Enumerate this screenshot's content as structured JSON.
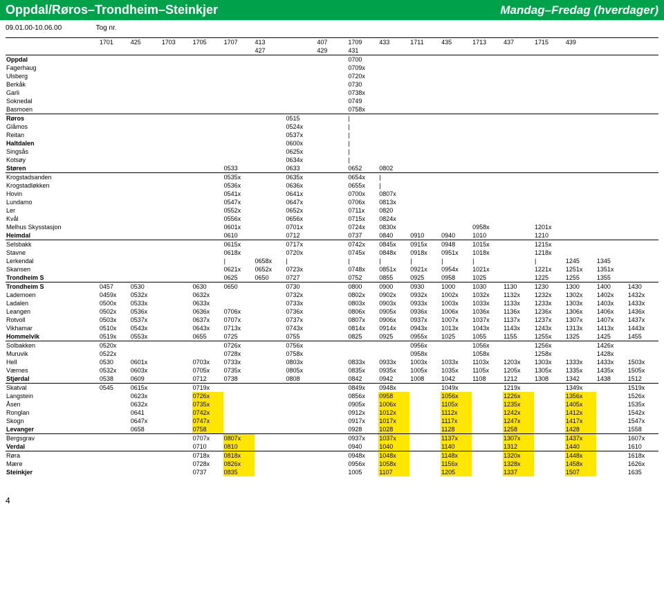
{
  "header": {
    "left": "Oppdal/Røros–Trondheim–Steinkjer",
    "right": "Mandag–Fredag (hverdager)"
  },
  "date_range": "09.01.00-10.06.00",
  "tog_label": "Tog nr.",
  "page_number": "4",
  "train_numbers_top": [
    "1701",
    "425",
    "1703",
    "1705",
    "1707",
    "413",
    "",
    "407",
    "1709",
    "433",
    "1711",
    "435",
    "1713",
    "437",
    "1715",
    "439"
  ],
  "train_numbers_bottom": [
    "",
    "",
    "",
    "",
    "",
    "427",
    "",
    "429",
    "431",
    "",
    "",
    "",
    "",
    "",
    "",
    "",
    "",
    ""
  ],
  "stations": [
    {
      "n": "Oppdal",
      "b": 1,
      "g": 1,
      "c": [
        "",
        "",
        "",
        "",
        "",
        "",
        "",
        "",
        "0700",
        "",
        "",
        "",
        "",
        "",
        "",
        "",
        "",
        ""
      ]
    },
    {
      "n": "Fagerhaug",
      "c": [
        "",
        "",
        "",
        "",
        "",
        "",
        "",
        "",
        "0709x",
        "",
        "",
        "",
        "",
        "",
        "",
        "",
        "",
        ""
      ]
    },
    {
      "n": "Ulsberg",
      "c": [
        "",
        "",
        "",
        "",
        "",
        "",
        "",
        "",
        "0720x",
        "",
        "",
        "",
        "",
        "",
        "",
        "",
        "",
        ""
      ]
    },
    {
      "n": "Berkåk",
      "c": [
        "",
        "",
        "",
        "",
        "",
        "",
        "",
        "",
        "0730",
        "",
        "",
        "",
        "",
        "",
        "",
        "",
        "",
        ""
      ]
    },
    {
      "n": "Garli",
      "c": [
        "",
        "",
        "",
        "",
        "",
        "",
        "",
        "",
        "0738x",
        "",
        "",
        "",
        "",
        "",
        "",
        "",
        "",
        ""
      ]
    },
    {
      "n": "Soknedal",
      "c": [
        "",
        "",
        "",
        "",
        "",
        "",
        "",
        "",
        "0749",
        "",
        "",
        "",
        "",
        "",
        "",
        "",
        "",
        ""
      ]
    },
    {
      "n": "Basmoen",
      "c": [
        "",
        "",
        "",
        "",
        "",
        "",
        "",
        "",
        "0758x",
        "",
        "",
        "",
        "",
        "",
        "",
        "",
        "",
        ""
      ]
    },
    {
      "n": "Røros",
      "b": 1,
      "g": 1,
      "c": [
        "",
        "",
        "",
        "",
        "",
        "",
        "0515",
        "",
        "|",
        "",
        "",
        "",
        "",
        "",
        "",
        "",
        "",
        ""
      ]
    },
    {
      "n": "Glåmos",
      "c": [
        "",
        "",
        "",
        "",
        "",
        "",
        "0524x",
        "",
        "|",
        "",
        "",
        "",
        "",
        "",
        "",
        "",
        "",
        ""
      ]
    },
    {
      "n": "Reitan",
      "c": [
        "",
        "",
        "",
        "",
        "",
        "",
        "0537x",
        "",
        "|",
        "",
        "",
        "",
        "",
        "",
        "",
        "",
        "",
        ""
      ]
    },
    {
      "n": "Haltdalen",
      "b": 1,
      "c": [
        "",
        "",
        "",
        "",
        "",
        "",
        "0600x",
        "",
        "|",
        "",
        "",
        "",
        "",
        "",
        "",
        "",
        "",
        ""
      ]
    },
    {
      "n": "Singsås",
      "c": [
        "",
        "",
        "",
        "",
        "",
        "",
        "0625x",
        "",
        "|",
        "",
        "",
        "",
        "",
        "",
        "",
        "",
        "",
        ""
      ]
    },
    {
      "n": "Kotsøy",
      "c": [
        "",
        "",
        "",
        "",
        "",
        "",
        "0634x",
        "",
        "|",
        "",
        "",
        "",
        "",
        "",
        "",
        "",
        "",
        ""
      ]
    },
    {
      "n": "Støren",
      "b": 1,
      "c": [
        "",
        "",
        "",
        "",
        "0533",
        "",
        "0633",
        "",
        "0652",
        "0802",
        "",
        "",
        "",
        "",
        "",
        "",
        "",
        ""
      ]
    },
    {
      "n": "Krogstadsanden",
      "g": 1,
      "c": [
        "",
        "",
        "",
        "",
        "0535x",
        "",
        "0635x",
        "",
        "0654x",
        "|",
        "",
        "",
        "",
        "",
        "",
        "",
        "",
        ""
      ]
    },
    {
      "n": "Krogstadløkken",
      "c": [
        "",
        "",
        "",
        "",
        "0536x",
        "",
        "0636x",
        "",
        "0655x",
        "|",
        "",
        "",
        "",
        "",
        "",
        "",
        "",
        ""
      ]
    },
    {
      "n": "Hovin",
      "c": [
        "",
        "",
        "",
        "",
        "0541x",
        "",
        "0641x",
        "",
        "0700x",
        "0807x",
        "",
        "",
        "",
        "",
        "",
        "",
        "",
        ""
      ]
    },
    {
      "n": "Lundamo",
      "c": [
        "",
        "",
        "",
        "",
        "0547x",
        "",
        "0647x",
        "",
        "0706x",
        "0813x",
        "",
        "",
        "",
        "",
        "",
        "",
        "",
        ""
      ]
    },
    {
      "n": "Ler",
      "c": [
        "",
        "",
        "",
        "",
        "0552x",
        "",
        "0652x",
        "",
        "0711x",
        "0820",
        "",
        "",
        "",
        "",
        "",
        "",
        "",
        ""
      ]
    },
    {
      "n": "Kvål",
      "c": [
        "",
        "",
        "",
        "",
        "0556x",
        "",
        "0656x",
        "",
        "0715x",
        "0824x",
        "",
        "",
        "",
        "",
        "",
        "",
        "",
        ""
      ]
    },
    {
      "n": "Melhus Skysstasjon",
      "c": [
        "",
        "",
        "",
        "",
        "0601x",
        "",
        "0701x",
        "",
        "0724x",
        "0830x",
        "",
        "",
        "0958x",
        "",
        "1201x",
        "",
        "",
        ""
      ]
    },
    {
      "n": "Heimdal",
      "b": 1,
      "c": [
        "",
        "",
        "",
        "",
        "0610",
        "",
        "0712",
        "",
        "0737",
        "0840",
        "0910",
        "0940",
        "1010",
        "",
        "1210",
        "",
        "",
        ""
      ]
    },
    {
      "n": "Selsbakk",
      "g": 1,
      "c": [
        "",
        "",
        "",
        "",
        "0615x",
        "",
        "0717x",
        "",
        "0742x",
        "0845x",
        "0915x",
        "0948",
        "1015x",
        "",
        "1215x",
        "",
        "",
        ""
      ]
    },
    {
      "n": "Stavne",
      "c": [
        "",
        "",
        "",
        "",
        "0618x",
        "",
        "0720x",
        "",
        "0745x",
        "0848x",
        "0918x",
        "0951x",
        "1018x",
        "",
        "1218x",
        "",
        "",
        ""
      ]
    },
    {
      "n": "Lerkendal",
      "c": [
        "",
        "",
        "",
        "",
        "|",
        "0658x",
        "|",
        "",
        "|",
        "|",
        "|",
        "|",
        "|",
        "",
        "|",
        "1245",
        "1345",
        ""
      ]
    },
    {
      "n": "Skansen",
      "c": [
        "",
        "",
        "",
        "",
        "0621x",
        "0652x",
        "0723x",
        "",
        "0748x",
        "0851x",
        "0921x",
        "0954x",
        "1021x",
        "",
        "1221x",
        "1251x",
        "1351x",
        ""
      ]
    },
    {
      "n": "Trondheim S",
      "b": 1,
      "c": [
        "",
        "",
        "",
        "",
        "0625",
        "0650",
        "0727",
        "",
        "0752",
        "0855",
        "0925",
        "0958",
        "1025",
        "",
        "1225",
        "1255",
        "1355",
        ""
      ]
    },
    {
      "n": "Trondheim S",
      "b": 1,
      "g": 1,
      "c": [
        "0457",
        "0530",
        "",
        "0630",
        "0650",
        "",
        "0730",
        "",
        "0800",
        "0900",
        "0930",
        "1000",
        "1030",
        "1130",
        "1230",
        "1300",
        "1400",
        "1430"
      ]
    },
    {
      "n": "Lademoen",
      "c": [
        "0459x",
        "0532x",
        "",
        "0632x",
        "",
        "",
        "0732x",
        "",
        "0802x",
        "0902x",
        "0932x",
        "1002x",
        "1032x",
        "1132x",
        "1232x",
        "1302x",
        "1402x",
        "1432x"
      ]
    },
    {
      "n": "Ladalen",
      "c": [
        "0500x",
        "0533x",
        "",
        "0633x",
        "",
        "",
        "0733x",
        "",
        "0803x",
        "0903x",
        "0933x",
        "1003x",
        "1033x",
        "1133x",
        "1233x",
        "1303x",
        "1403x",
        "1433x"
      ]
    },
    {
      "n": "Leangen",
      "c": [
        "0502x",
        "0536x",
        "",
        "0636x",
        "0706x",
        "",
        "0736x",
        "",
        "0806x",
        "0905x",
        "0936x",
        "1006x",
        "1036x",
        "1136x",
        "1236x",
        "1306x",
        "1406x",
        "1436x"
      ]
    },
    {
      "n": "Rotvoll",
      "c": [
        "0503x",
        "0537x",
        "",
        "0637x",
        "0707x",
        "",
        "0737x",
        "",
        "0807x",
        "0906x",
        "0937x",
        "1007x",
        "1037x",
        "1137x",
        "1237x",
        "1307x",
        "1407x",
        "1437x"
      ]
    },
    {
      "n": "Vikhamar",
      "c": [
        "0510x",
        "0543x",
        "",
        "0643x",
        "0713x",
        "",
        "0743x",
        "",
        "0814x",
        "0914x",
        "0943x",
        "1013x",
        "1043x",
        "1143x",
        "1243x",
        "1313x",
        "1413x",
        "1443x"
      ]
    },
    {
      "n": "Hommelvik",
      "b": 1,
      "c": [
        "0519x",
        "0553x",
        "",
        "0655",
        "0725",
        "",
        "0755",
        "",
        "0825",
        "0925",
        "0955x",
        "1025",
        "1055",
        "1155",
        "1255x",
        "1325",
        "1425",
        "1455"
      ]
    },
    {
      "n": "Solbakken",
      "g": 1,
      "c": [
        "0520x",
        "",
        "",
        "",
        "0726x",
        "",
        "0756x",
        "",
        "",
        "",
        "0956x",
        "",
        "1056x",
        "",
        "1256x",
        "",
        "1426x",
        ""
      ]
    },
    {
      "n": "Muruvik",
      "c": [
        "0522x",
        "",
        "",
        "",
        "0728x",
        "",
        "0758x",
        "",
        "",
        "",
        "0958x",
        "",
        "1058x",
        "",
        "1258x",
        "",
        "1428x",
        ""
      ]
    },
    {
      "n": "Hell",
      "c": [
        "0530",
        "0601x",
        "",
        "0703x",
        "0733x",
        "",
        "0803x",
        "",
        "0833x",
        "0933x",
        "1003x",
        "1033x",
        "1103x",
        "1203x",
        "1303x",
        "1333x",
        "1433x",
        "1503x"
      ]
    },
    {
      "n": "Værnes",
      "plane": 1,
      "c": [
        "0532x",
        "0603x",
        "",
        "0705x",
        "0735x",
        "",
        "0805x",
        "",
        "0835x",
        "0935x",
        "1005x",
        "1035x",
        "1105x",
        "1205x",
        "1305x",
        "1335x",
        "1435x",
        "1505x"
      ]
    },
    {
      "n": "Stjørdal",
      "b": 1,
      "c": [
        "0538",
        "0609",
        "",
        "0712",
        "0738",
        "",
        "0808",
        "",
        "0842",
        "0942",
        "1008",
        "1042",
        "1108",
        "1212",
        "1308",
        "1342",
        "1438",
        "1512"
      ]
    },
    {
      "n": "Skatval",
      "g": 1,
      "c": [
        "0545",
        "0615x",
        "",
        "0719x",
        "",
        "",
        "",
        "",
        "0849x",
        "0948x",
        "",
        "1049x",
        "",
        "1219x",
        "",
        "1349x",
        "",
        "1519x"
      ]
    },
    {
      "n": "Langstein",
      "c": [
        "",
        "0623x",
        "",
        "0726x",
        "",
        "",
        "",
        "",
        "0856x",
        "0958",
        "",
        "1056x",
        "",
        "1226x",
        "",
        "1356x",
        "",
        "1526x"
      ],
      "hl": [
        3,
        9,
        11,
        13,
        15
      ]
    },
    {
      "n": "Åsen",
      "c": [
        "",
        "0632x",
        "",
        "0735x",
        "",
        "",
        "",
        "",
        "0905x",
        "1006x",
        "",
        "1105x",
        "",
        "1235x",
        "",
        "1405x",
        "",
        "1535x"
      ],
      "hl": [
        3,
        9,
        11,
        13,
        15
      ]
    },
    {
      "n": "Ronglan",
      "c": [
        "",
        "0641",
        "",
        "0742x",
        "",
        "",
        "",
        "",
        "0912x",
        "1012x",
        "",
        "1112x",
        "",
        "1242x",
        "",
        "1412x",
        "",
        "1542x"
      ],
      "hl": [
        3,
        9,
        11,
        13,
        15
      ]
    },
    {
      "n": "Skogn",
      "c": [
        "",
        "0647x",
        "",
        "0747x",
        "",
        "",
        "",
        "",
        "0917x",
        "1017x",
        "",
        "1117x",
        "",
        "1247x",
        "",
        "1417x",
        "",
        "1547x"
      ],
      "hl": [
        3,
        9,
        11,
        13,
        15
      ]
    },
    {
      "n": "Levanger",
      "b": 1,
      "c": [
        "",
        "0658",
        "",
        "0758",
        "",
        "",
        "",
        "",
        "0928",
        "1028",
        "",
        "1128",
        "",
        "1258",
        "",
        "1428",
        "",
        "1558"
      ],
      "hl": [
        3,
        9,
        11,
        13,
        15
      ]
    },
    {
      "n": "Bergsgrav",
      "g": 1,
      "c": [
        "",
        "",
        "",
        "0707x",
        "0807x",
        "",
        "",
        "",
        "0937x",
        "1037x",
        "",
        "1137x",
        "",
        "1307x",
        "",
        "1437x",
        "",
        "1607x"
      ],
      "hl": [
        4,
        9,
        11,
        13,
        15
      ]
    },
    {
      "n": "Verdal",
      "b": 1,
      "c": [
        "",
        "",
        "",
        "0710",
        "0810",
        "",
        "",
        "",
        "0940",
        "1040",
        "",
        "1140",
        "",
        "1312",
        "",
        "1440",
        "",
        "1610"
      ],
      "hl": [
        4,
        9,
        11,
        13,
        15
      ]
    },
    {
      "n": "Røra",
      "g": 1,
      "c": [
        "",
        "",
        "",
        "0718x",
        "0818x",
        "",
        "",
        "",
        "0948x",
        "1048x",
        "",
        "1148x",
        "",
        "1320x",
        "",
        "1448x",
        "",
        "1618x"
      ],
      "hl": [
        4,
        9,
        11,
        13,
        15
      ]
    },
    {
      "n": "Mære",
      "c": [
        "",
        "",
        "",
        "0728x",
        "0826x",
        "",
        "",
        "",
        "0956x",
        "1058x",
        "",
        "1156x",
        "",
        "1328x",
        "",
        "1458x",
        "",
        "1626x"
      ],
      "hl": [
        4,
        9,
        11,
        13,
        15
      ]
    },
    {
      "n": "Steinkjer",
      "b": 1,
      "c": [
        "",
        "",
        "",
        "0737",
        "0835",
        "",
        "",
        "",
        "1005",
        "1107",
        "",
        "1205",
        "",
        "1337",
        "",
        "1507",
        "",
        "1635"
      ],
      "hl": [
        4,
        9,
        11,
        13,
        15
      ]
    }
  ]
}
